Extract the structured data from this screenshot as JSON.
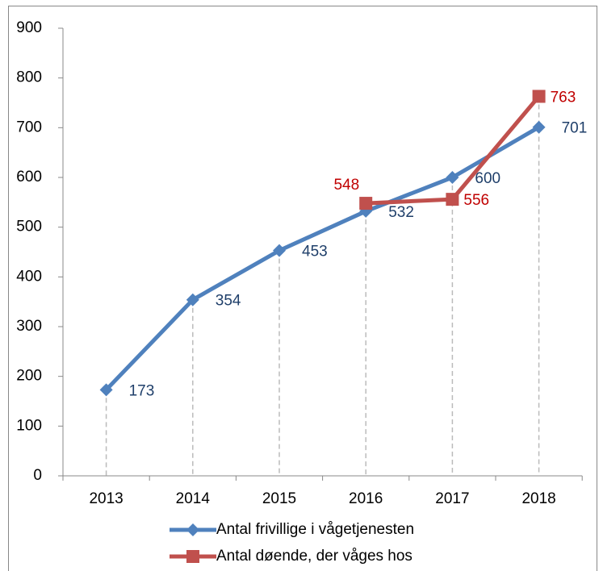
{
  "chart_data": {
    "type": "line",
    "categories": [
      "2013",
      "2014",
      "2015",
      "2016",
      "2017",
      "2018"
    ],
    "series": [
      {
        "name": "Antal frivillige i vågetjenesten",
        "color": "#4f81bd",
        "label_color": "#1f3f6a",
        "marker": "diamond",
        "values": [
          173,
          354,
          453,
          532,
          600,
          701
        ]
      },
      {
        "name": "Antal døende, der våges hos",
        "color": "#c0504d",
        "label_color": "#c00000",
        "marker": "square",
        "values": [
          null,
          null,
          null,
          548,
          556,
          763
        ]
      }
    ],
    "ylim": [
      0,
      900
    ],
    "yticks": [
      0,
      100,
      200,
      300,
      400,
      500,
      600,
      700,
      800,
      900
    ],
    "drop_lines": true,
    "legend": "bottom"
  }
}
